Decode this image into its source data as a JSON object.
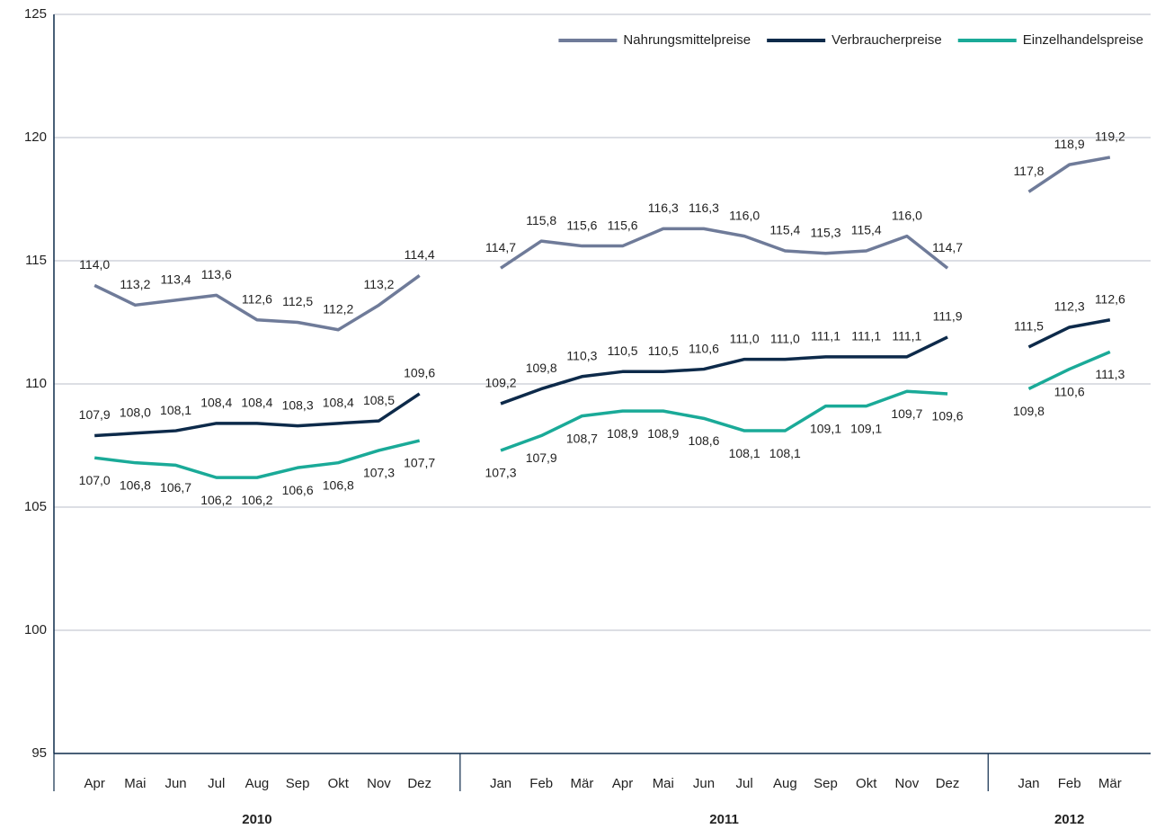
{
  "chart_data": {
    "type": "line",
    "categories": [
      "Apr",
      "Mai",
      "Jun",
      "Jul",
      "Aug",
      "Sep",
      "Okt",
      "Nov",
      "Dez",
      null,
      "Jan",
      "Feb",
      "Mär",
      "Apr",
      "Mai",
      "Jun",
      "Jul",
      "Aug",
      "Sep",
      "Okt",
      "Nov",
      "Dez",
      null,
      "Jan",
      "Feb",
      "Mär"
    ],
    "year_labels": [
      "2010",
      "2011",
      "2012"
    ],
    "series": [
      {
        "name": "Nahrungsmittelpreise",
        "color": "#6f7b99",
        "values": [
          114.0,
          113.2,
          113.4,
          113.6,
          112.6,
          112.5,
          112.2,
          113.2,
          114.4,
          null,
          114.7,
          115.8,
          115.6,
          115.6,
          116.3,
          116.3,
          116.0,
          115.4,
          115.3,
          115.4,
          116.0,
          114.7,
          null,
          117.8,
          118.9,
          119.2
        ],
        "value_labels": [
          "114,0",
          "113,2",
          "113,4",
          "113,6",
          "112,6",
          "112,5",
          "112,2",
          "113,2",
          "114,4",
          null,
          "114,7",
          "115,8",
          "115,6",
          "115,6",
          "116,3",
          "116,3",
          "116,0",
          "115,4",
          "115,3",
          "115,4",
          "116,0",
          "114,7",
          null,
          "117,8",
          "118,9",
          "119,2"
        ]
      },
      {
        "name": "Verbraucherpreise",
        "color": "#0d2a4a",
        "values": [
          107.9,
          108.0,
          108.1,
          108.4,
          108.4,
          108.3,
          108.4,
          108.5,
          109.6,
          null,
          109.2,
          109.8,
          110.3,
          110.5,
          110.5,
          110.6,
          111.0,
          111.0,
          111.1,
          111.1,
          111.1,
          111.9,
          null,
          111.5,
          112.3,
          112.6
        ],
        "value_labels": [
          "107,9",
          "108,0",
          "108,1",
          "108,4",
          "108,4",
          "108,3",
          "108,4",
          "108,5",
          "109,6",
          null,
          "109,2",
          "109,8",
          "110,3",
          "110,5",
          "110,5",
          "110,6",
          "111,0",
          "111,0",
          "111,1",
          "111,1",
          "111,1",
          "111,9",
          null,
          "111,5",
          "112,3",
          "112,6"
        ]
      },
      {
        "name": "Einzelhandelspreise",
        "color": "#1aaa98",
        "values": [
          107.0,
          106.8,
          106.7,
          106.2,
          106.2,
          106.6,
          106.8,
          107.3,
          107.7,
          null,
          107.3,
          107.9,
          108.7,
          108.9,
          108.9,
          108.6,
          108.1,
          108.1,
          109.1,
          109.1,
          109.7,
          109.6,
          null,
          109.8,
          110.6,
          111.3
        ],
        "value_labels": [
          "107,0",
          "106,8",
          "106,7",
          "106,2",
          "106,2",
          "106,6",
          "106,8",
          "107,3",
          "107,7",
          null,
          "107,3",
          "107,9",
          "108,7",
          "108,9",
          "108,9",
          "108,6",
          "108,1",
          "108,1",
          "109,1",
          "109,1",
          "109,7",
          "109,6",
          null,
          "109,8",
          "110,6",
          "111,3"
        ]
      }
    ],
    "ylim": [
      95,
      125
    ],
    "yticks": [
      95,
      100,
      105,
      110,
      115,
      120,
      125
    ],
    "grid": true,
    "legend": "top-right"
  }
}
